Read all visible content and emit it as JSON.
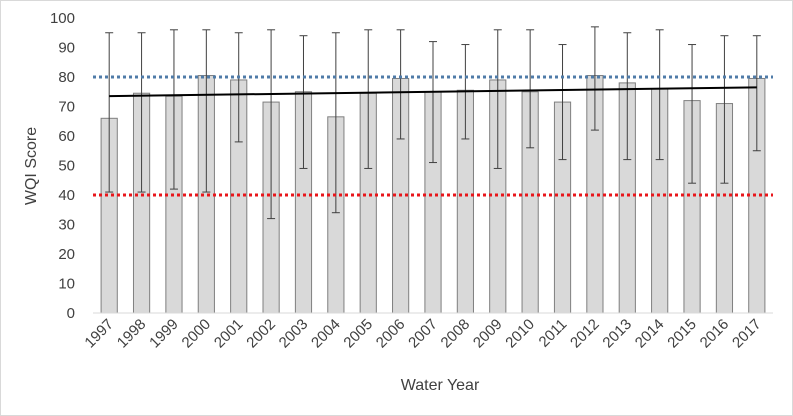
{
  "chart_data": {
    "type": "bar",
    "title": "",
    "xlabel": "Water Year",
    "ylabel": "WQI Score",
    "ylim": [
      0,
      100
    ],
    "yticks": [
      0,
      10,
      20,
      30,
      40,
      50,
      60,
      70,
      80,
      90,
      100
    ],
    "grid": false,
    "categories": [
      "1997",
      "1998",
      "1999",
      "2000",
      "2001",
      "2002",
      "2003",
      "2004",
      "2005",
      "2006",
      "2007",
      "2008",
      "2009",
      "2010",
      "2011",
      "2012",
      "2013",
      "2014",
      "2015",
      "2016",
      "2017"
    ],
    "series": [
      {
        "values": [
          66,
          74.5,
          73.5,
          80.5,
          79,
          71.5,
          75,
          66.5,
          74.5,
          79.5,
          75,
          75.5,
          79,
          75,
          71.5,
          80.5,
          78,
          76,
          72,
          71,
          79.5
        ],
        "error_low": [
          41,
          41,
          42,
          41,
          58,
          32,
          49,
          34,
          49,
          59,
          51,
          59,
          49,
          56,
          52,
          62,
          52,
          52,
          44,
          44,
          55
        ],
        "error_high": [
          95,
          95,
          96,
          96,
          95,
          96,
          94,
          95,
          96,
          96,
          92,
          91,
          96,
          96,
          91,
          97,
          95,
          96,
          91,
          94,
          94
        ],
        "color": "#d9d9d9"
      }
    ],
    "trendline": {
      "start": [
        1997,
        73.5
      ],
      "end": [
        2017,
        76.5
      ],
      "color": "#000000"
    },
    "reference_lines": [
      {
        "y": 80,
        "color": "#4f7ba8",
        "style": "dotted"
      },
      {
        "y": 40,
        "color": "#e8161b",
        "style": "dotted"
      }
    ]
  }
}
